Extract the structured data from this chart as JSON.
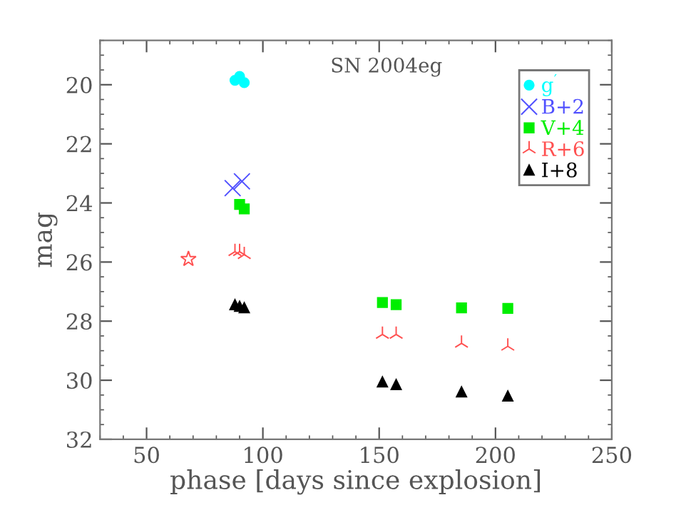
{
  "chart_data": {
    "type": "scatter",
    "xlabel": "phase [days since explosion]",
    "ylabel": "mag",
    "annotations": [
      "SN 2004eg"
    ],
    "xlim": [
      30,
      250
    ],
    "xticks": [
      50,
      100,
      150,
      200,
      250
    ],
    "ylim": [
      32,
      18.5
    ],
    "yticks": [
      20,
      22,
      24,
      26,
      28,
      30,
      32
    ],
    "legend": "top right",
    "grid": false,
    "series": [
      {
        "name": "g$^{′}$",
        "color": "#00ffff",
        "marker": "circle",
        "x": [
          88,
          90,
          92
        ],
        "values": [
          19.85,
          19.72,
          19.93
        ]
      },
      {
        "name": "B+2",
        "color": "#5050ff",
        "marker": "cross",
        "x": [
          87,
          91
        ],
        "values": [
          23.5,
          23.27
        ]
      },
      {
        "name": "V+4",
        "color": "#00ee00",
        "marker": "square",
        "x": [
          90,
          92,
          151.4,
          157.3,
          185.4,
          205.3
        ],
        "values": [
          24.05,
          24.2,
          27.37,
          27.44,
          27.55,
          27.57
        ]
      },
      {
        "name": "R+6",
        "color": "#ff5050",
        "x": [
          88,
          90,
          92,
          151.4,
          157.3,
          185.4,
          205.3
        ],
        "values": [
          25.65,
          25.65,
          25.75,
          28.45,
          28.45,
          28.75,
          28.85
        ]
      },
      {
        "name": "I+8",
        "color": "#000000",
        "marker": "triangle",
        "x": [
          88,
          90,
          92,
          151.4,
          157.3,
          185.4,
          205.3
        ],
        "values": [
          27.45,
          27.5,
          27.55,
          30.06,
          30.15,
          30.4,
          30.54
        ]
      },
      {
        "color": "#ff5050",
        "marker": "star",
        "x": [
          68
        ],
        "values": [
          25.9
        ]
      }
    ]
  }
}
